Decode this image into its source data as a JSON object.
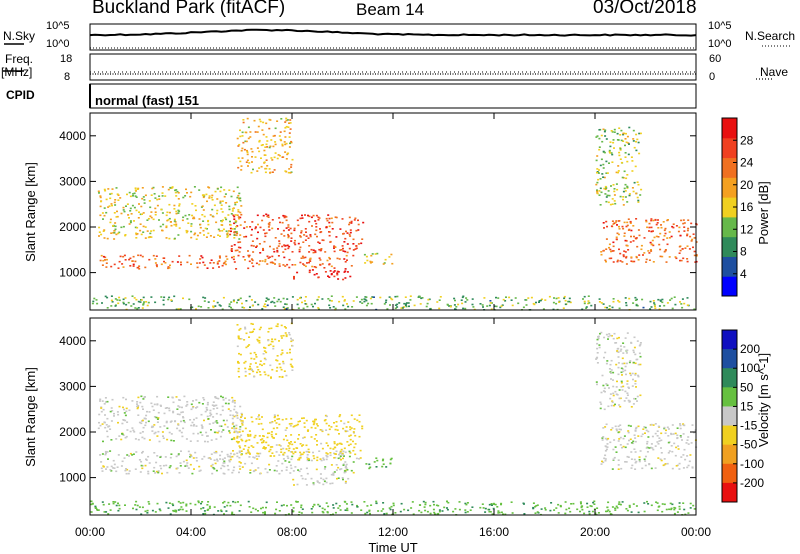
{
  "header": {
    "station": "Buckland Park (fitACF)",
    "beam": "Beam 14",
    "date": "03/Oct/2018"
  },
  "top_panels": {
    "nsky_label": "N.Sky",
    "nsky_top": "10^5",
    "nsky_bottom": "10^0",
    "nsearch_label": "N.Search",
    "nsearch_top": "10^5",
    "nsearch_bottom": "10^0",
    "freq_label_1": "Freq.",
    "freq_label_2": "[MHz]",
    "freq_top": "18",
    "freq_bottom": "8",
    "nave_label": "Nave",
    "nave_top": "60",
    "nave_bottom": "0",
    "cpid_label": "CPID",
    "cpid_value": "normal (fast) 151"
  },
  "colors": {
    "power": [
      "#0000ff",
      "#1e4fa0",
      "#2f8a5a",
      "#66b84a",
      "#f0d020",
      "#f4a020",
      "#f07020",
      "#f04020",
      "#e81010"
    ],
    "velocity": [
      "#1010c0",
      "#1e4fa0",
      "#2f8a5a",
      "#66c040",
      "#c8c8c8",
      "#f0d020",
      "#f0a020",
      "#f06010",
      "#e81010"
    ]
  },
  "chart_data": [
    {
      "type": "heatmap",
      "panel": "power",
      "ylabel": "Slant Range [km]",
      "xlabel": "Time UT",
      "xlim": [
        "00:00",
        "24:00"
      ],
      "ylim": [
        180,
        4500
      ],
      "x_ticks": [
        "00:00",
        "04:00",
        "08:00",
        "12:00",
        "16:00",
        "20:00",
        "00:00"
      ],
      "y_ticks": [
        1000,
        2000,
        3000,
        4000
      ],
      "colorbar": {
        "label": "Power [dB]",
        "range": [
          0,
          32
        ],
        "ticks": [
          4,
          8,
          12,
          16,
          20,
          24,
          28
        ]
      },
      "regions": [
        {
          "t": [
            0.3,
            10.5
          ],
          "r": [
            1100,
            1400
          ],
          "value": 24
        },
        {
          "t": [
            5.5,
            10.8
          ],
          "r": [
            1450,
            2300
          ],
          "value": 26
        },
        {
          "t": [
            8.0,
            10.3
          ],
          "r": [
            850,
            1100
          ],
          "value": 30
        },
        {
          "t": [
            0.3,
            6.0
          ],
          "r": [
            1750,
            2900
          ],
          "value": 16
        },
        {
          "t": [
            5.8,
            8.0
          ],
          "r": [
            3200,
            4400
          ],
          "value": 18
        },
        {
          "t": [
            10.8,
            12.0
          ],
          "r": [
            1200,
            1450
          ],
          "value": 16
        },
        {
          "t": [
            20.2,
            24.0
          ],
          "r": [
            1200,
            2200
          ],
          "value": 24
        },
        {
          "t": [
            20.0,
            21.8
          ],
          "r": [
            2500,
            4200
          ],
          "value": 14
        },
        {
          "t": [
            0.0,
            24.0
          ],
          "r": [
            200,
            500
          ],
          "value": 12
        }
      ]
    },
    {
      "type": "heatmap",
      "panel": "velocity",
      "ylabel": "Slant Range [km]",
      "xlabel": "Time UT",
      "xlim": [
        "00:00",
        "24:00"
      ],
      "ylim": [
        180,
        4500
      ],
      "x_ticks": [
        "00:00",
        "04:00",
        "08:00",
        "12:00",
        "16:00",
        "20:00",
        "00:00"
      ],
      "y_ticks": [
        1000,
        2000,
        3000,
        4000
      ],
      "colorbar": {
        "label": "Velocity [m s^-1]",
        "ticks": [
          200,
          100,
          50,
          15,
          -15,
          -50,
          -100,
          -200
        ]
      },
      "regions": [
        {
          "t": [
            0.3,
            10.5
          ],
          "r": [
            1100,
            1600
          ],
          "value": 0
        },
        {
          "t": [
            5.5,
            10.8
          ],
          "r": [
            1400,
            2400
          ],
          "value": -30
        },
        {
          "t": [
            8.0,
            10.3
          ],
          "r": [
            850,
            1100
          ],
          "value": 0
        },
        {
          "t": [
            0.3,
            6.0
          ],
          "r": [
            1800,
            2800
          ],
          "value": 0
        },
        {
          "t": [
            5.8,
            8.0
          ],
          "r": [
            3200,
            4400
          ],
          "value": -30
        },
        {
          "t": [
            10.8,
            12.0
          ],
          "r": [
            1200,
            1450
          ],
          "value": 40
        },
        {
          "t": [
            20.2,
            24.0
          ],
          "r": [
            1200,
            2200
          ],
          "value": 0
        },
        {
          "t": [
            20.0,
            21.8
          ],
          "r": [
            2500,
            4200
          ],
          "value": 0
        },
        {
          "t": [
            0.0,
            24.0
          ],
          "r": [
            200,
            500
          ],
          "value": 40
        }
      ]
    }
  ]
}
